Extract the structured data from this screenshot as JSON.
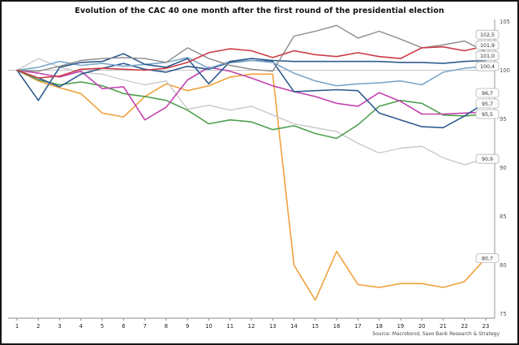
{
  "title": "Evolution of the CAC 40 one month after the first round of the presidential election",
  "source": "Source: Macrobond, Saxo Bank Research & Strategy",
  "chart_data": {
    "type": "line",
    "title": "Evolution of the CAC 40 one month after the first round of the presidential election",
    "xlabel": "",
    "ylabel": "",
    "x": [
      1,
      2,
      3,
      4,
      5,
      6,
      7,
      8,
      9,
      10,
      11,
      12,
      13,
      14,
      15,
      16,
      17,
      18,
      19,
      20,
      21,
      22,
      23
    ],
    "ylim": [
      75,
      105
    ],
    "yticks": [
      105,
      100,
      95,
      90,
      85,
      80,
      75
    ],
    "grid": "single horizontal gridline at 100",
    "legend": "none - end-of-line value labels only",
    "baseline_value": 100,
    "series": [
      {
        "name": "red",
        "color": "#cb3b47",
        "end_label": "102,5",
        "end_value": 102.5,
        "values": [
          100,
          99.2,
          99.4,
          100.1,
          100.2,
          100.1,
          100.0,
          100.2,
          100.8,
          101.8,
          102.2,
          102.0,
          101.3,
          102.0,
          101.6,
          101.4,
          101.8,
          101.4,
          101.2,
          102.3,
          102.4,
          102.0,
          102.5
        ]
      },
      {
        "name": "darkgray",
        "color": "#8a8a8a",
        "end_label": "101,9",
        "end_value": 101.9,
        "values": [
          100,
          99.9,
          100.4,
          101.0,
          101.2,
          101.3,
          101.2,
          100.8,
          102.3,
          101.2,
          100.5,
          100.1,
          99.9,
          103.5,
          104.0,
          104.6,
          103.3,
          104.0,
          103.2,
          102.3,
          102.6,
          103.0,
          101.9
        ]
      },
      {
        "name": "navy",
        "color": "#2e5c8f",
        "end_label": "101,0",
        "end_value": 101.0,
        "values": [
          100,
          96.9,
          100.3,
          100.8,
          100.9,
          101.7,
          100.6,
          100.3,
          101.2,
          98.6,
          100.9,
          101.2,
          101.0,
          100.9,
          100.9,
          100.9,
          100.9,
          100.9,
          100.8,
          100.8,
          100.7,
          100.9,
          101.0
        ]
      },
      {
        "name": "steelblue",
        "color": "#7da7c9",
        "end_label": "100,4",
        "end_value": 100.4,
        "values": [
          100,
          100.3,
          100.9,
          100.5,
          100.7,
          100.4,
          100.6,
          100.8,
          101.3,
          100.2,
          100.9,
          101.0,
          100.8,
          99.7,
          98.9,
          98.4,
          98.6,
          98.7,
          98.9,
          98.5,
          99.8,
          100.2,
          100.4
        ]
      },
      {
        "name": "navy2",
        "color": "#2e5c8f",
        "end_label": "96,7",
        "end_value": 96.7,
        "values": [
          100,
          99.2,
          98.3,
          99.6,
          100.2,
          100.7,
          100.1,
          99.8,
          100.4,
          100.1,
          100.8,
          101.0,
          100.9,
          97.8,
          97.9,
          98.0,
          97.9,
          95.6,
          94.9,
          94.2,
          94.1,
          95.3,
          96.7
        ]
      },
      {
        "name": "magenta",
        "color": "#c343b0",
        "end_label": "95,7",
        "end_value": 95.7,
        "values": [
          100,
          99.7,
          99.3,
          99.9,
          98.1,
          98.3,
          94.9,
          96.2,
          99.0,
          100.3,
          99.9,
          99.2,
          98.4,
          97.8,
          97.3,
          96.6,
          96.3,
          97.7,
          96.8,
          95.5,
          95.5,
          95.6,
          95.7
        ]
      },
      {
        "name": "green",
        "color": "#4f9e4f",
        "end_label": "95,5",
        "end_value": 95.5,
        "values": [
          100,
          99.0,
          98.5,
          98.8,
          98.4,
          97.6,
          97.3,
          96.9,
          95.9,
          94.5,
          94.9,
          94.7,
          93.9,
          94.3,
          93.5,
          93.0,
          94.4,
          96.3,
          96.9,
          96.6,
          95.4,
          95.3,
          95.5
        ]
      },
      {
        "name": "lightgray",
        "color": "#c9c9c9",
        "end_label": "90,9",
        "end_value": 90.9,
        "values": [
          100,
          101.2,
          100.3,
          99.8,
          99.6,
          99.0,
          98.5,
          98.9,
          96.0,
          96.4,
          95.9,
          96.3,
          95.4,
          94.5,
          94.1,
          93.7,
          92.5,
          91.5,
          92.0,
          92.2,
          91.0,
          90.3,
          90.9
        ]
      },
      {
        "name": "orange",
        "color": "#f0a23c",
        "end_label": "80,7",
        "end_value": 80.7,
        "values": [
          100,
          98.9,
          98.2,
          97.6,
          95.6,
          95.2,
          97.3,
          98.6,
          97.9,
          98.4,
          99.3,
          99.6,
          99.6,
          80.0,
          76.4,
          81.4,
          78.0,
          77.7,
          78.1,
          78.1,
          77.7,
          78.3,
          80.7
        ]
      }
    ]
  }
}
